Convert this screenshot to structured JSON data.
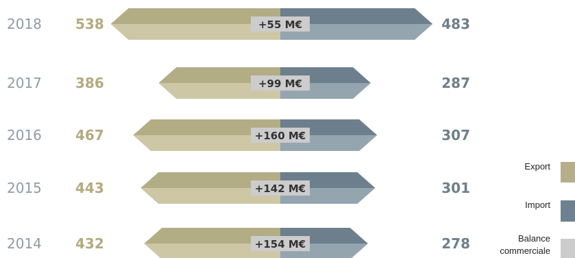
{
  "chart_data": {
    "type": "bar",
    "categories": [
      "2018",
      "2017",
      "2016",
      "2015",
      "2014"
    ],
    "series": [
      {
        "name": "Export",
        "values": [
          538,
          386,
          467,
          443,
          432
        ]
      },
      {
        "name": "Import",
        "values": [
          483,
          287,
          307,
          301,
          278
        ]
      }
    ],
    "balance_labels": [
      "+55 M€",
      "+99 M€",
      "+160 M€",
      "+142 M€",
      "+154 M€"
    ],
    "legend": {
      "position": "right",
      "items": [
        {
          "label": "Export",
          "color": "#b5ae88"
        },
        {
          "label": "Import",
          "color": "#6e8190"
        },
        {
          "label": "Balance",
          "label2": "commerciale",
          "color": "#cccccc"
        }
      ]
    },
    "colors": {
      "export_dark": "#b3ad86",
      "export_light": "#cdc7a6",
      "import_dark": "#6d7f8c",
      "import_light": "#95a5b0",
      "export_text": "#b3ab7e",
      "import_text": "#6f7f8a",
      "balance_box": "#cccccc"
    }
  }
}
